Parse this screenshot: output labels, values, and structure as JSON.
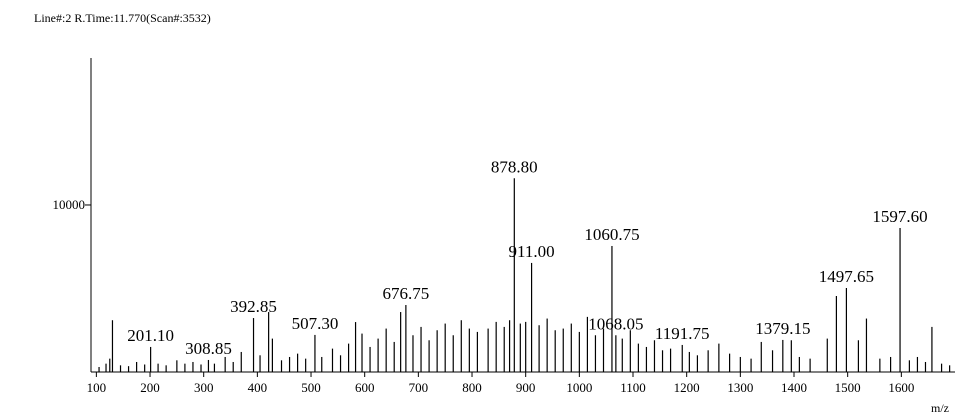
{
  "header": "Line#:2  R.Time:11.770(Scan#:3532)",
  "chart_data": {
    "type": "stick",
    "x_label": "m/z",
    "color": "#000000",
    "xlim": [
      90,
      1700
    ],
    "ylim": [
      0,
      18800
    ],
    "xticks": [
      100,
      200,
      300,
      400,
      500,
      600,
      700,
      800,
      900,
      1000,
      1100,
      1200,
      1300,
      1400,
      1500,
      1600
    ],
    "yticks": [
      10000
    ],
    "x": [
      105,
      118,
      125,
      130,
      145,
      160,
      175,
      190,
      201.1,
      215,
      230,
      250,
      265,
      280,
      295,
      308.85,
      320,
      340,
      355,
      370,
      392.85,
      405,
      421,
      428,
      445,
      460,
      475,
      490,
      507.3,
      520,
      540,
      555,
      570,
      583,
      595,
      610,
      625,
      640,
      655,
      667,
      676.75,
      690,
      705,
      720,
      735,
      750,
      765,
      780,
      795,
      810,
      830,
      845,
      860,
      870,
      878.8,
      890,
      900,
      911,
      925,
      940,
      955,
      970,
      985,
      1000,
      1015,
      1030,
      1045,
      1060.75,
      1068.05,
      1080,
      1095,
      1110,
      1125,
      1140,
      1155,
      1170,
      1191.75,
      1205,
      1220,
      1240,
      1260,
      1280,
      1300,
      1320,
      1339,
      1360,
      1379.15,
      1395,
      1410,
      1430,
      1462,
      1479,
      1497.65,
      1520,
      1535,
      1560,
      1580,
      1597.6,
      1615,
      1630,
      1645,
      1657,
      1675,
      1690
    ],
    "values": [
      300,
      500,
      800,
      3100,
      400,
      350,
      600,
      450,
      1500,
      500,
      400,
      700,
      500,
      600,
      450,
      720,
      500,
      900,
      600,
      1200,
      3230,
      1000,
      3590,
      2000,
      700,
      900,
      1100,
      800,
      2220,
      900,
      1400,
      1000,
      1700,
      2990,
      2300,
      1500,
      2000,
      2600,
      1800,
      3590,
      4010,
      2200,
      2700,
      1900,
      2500,
      2900,
      2200,
      3100,
      2600,
      2400,
      2600,
      3000,
      2700,
      3100,
      11600,
      2900,
      3000,
      6530,
      2800,
      3200,
      2500,
      2600,
      2900,
      2400,
      3300,
      2200,
      2600,
      7545,
      2200,
      2000,
      2500,
      1700,
      1500,
      1900,
      1300,
      1400,
      1620,
      1200,
      1000,
      1300,
      1700,
      1100,
      900,
      800,
      1800,
      1300,
      1920,
      1900,
      900,
      800,
      2000,
      4550,
      5030,
      1900,
      3200,
      800,
      900,
      8620,
      700,
      900,
      600,
      2700,
      500,
      400
    ],
    "peak_labels": [
      null,
      null,
      null,
      null,
      null,
      null,
      null,
      null,
      "201.10",
      null,
      null,
      null,
      null,
      null,
      null,
      "308.85",
      null,
      null,
      null,
      null,
      "392.85",
      null,
      null,
      null,
      null,
      null,
      null,
      null,
      "507.30",
      null,
      null,
      null,
      null,
      null,
      null,
      null,
      null,
      null,
      null,
      null,
      "676.75",
      null,
      null,
      null,
      null,
      null,
      null,
      null,
      null,
      null,
      null,
      null,
      null,
      null,
      "878.80",
      null,
      null,
      "911.00",
      null,
      null,
      null,
      null,
      null,
      null,
      null,
      null,
      null,
      "1060.75",
      "1068.05",
      null,
      null,
      null,
      null,
      null,
      null,
      null,
      "1191.75",
      null,
      null,
      null,
      null,
      null,
      null,
      null,
      null,
      null,
      "1379.15",
      null,
      null,
      null,
      null,
      null,
      "1497.65",
      null,
      null,
      null,
      null,
      "1597.60",
      null,
      null,
      null,
      null,
      null,
      null
    ]
  }
}
